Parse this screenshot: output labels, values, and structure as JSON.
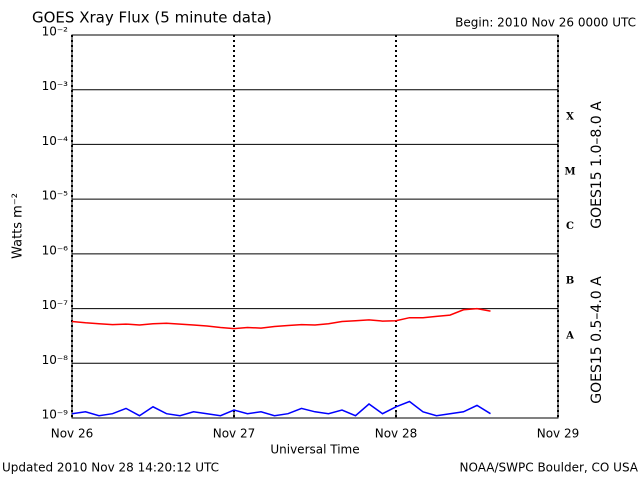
{
  "chart_data": {
    "type": "line",
    "title": "GOES Xray Flux (5 minute data)",
    "subtitle": "Begin:  2010 Nov 26 0000 UTC",
    "x_label": "Universal Time",
    "y_label": "Watts m⁻²",
    "footer_left": "Updated 2010 Nov 28 14:20:12 UTC",
    "footer_right": "NOAA/SWPC Boulder, CO USA",
    "log_scale": true,
    "grid": true,
    "xlim": [
      0,
      3
    ],
    "xticks": [
      {
        "value": 0,
        "label": "Nov 26"
      },
      {
        "value": 1,
        "label": "Nov 27"
      },
      {
        "value": 2,
        "label": "Nov 28"
      },
      {
        "value": 3,
        "label": "Nov 29"
      }
    ],
    "ylim": [
      1e-09,
      0.01
    ],
    "yticks": [
      {
        "value": 1e-09,
        "label": "10⁻⁹"
      },
      {
        "value": 1e-08,
        "label": "10⁻⁸"
      },
      {
        "value": 1e-07,
        "label": "10⁻⁷"
      },
      {
        "value": 1e-06,
        "label": "10⁻⁶"
      },
      {
        "value": 1e-05,
        "label": "10⁻⁵"
      },
      {
        "value": 0.0001,
        "label": "10⁻⁴"
      },
      {
        "value": 0.001,
        "label": "10⁻³"
      },
      {
        "value": 0.01,
        "label": "10⁻²"
      }
    ],
    "flare_classes": [
      {
        "value": 0.0001,
        "label": "X"
      },
      {
        "value": 1e-05,
        "label": "M"
      },
      {
        "value": 1e-06,
        "label": "C"
      },
      {
        "value": 1e-07,
        "label": "B"
      },
      {
        "value": 1e-08,
        "label": "A"
      }
    ],
    "x": [
      0,
      0.0833,
      0.1667,
      0.25,
      0.3333,
      0.4167,
      0.5,
      0.5833,
      0.6667,
      0.75,
      0.8333,
      0.9167,
      1,
      1.0833,
      1.1667,
      1.25,
      1.3333,
      1.4167,
      1.5,
      1.5833,
      1.6667,
      1.75,
      1.8333,
      1.9167,
      2,
      2.0833,
      2.1667,
      2.25,
      2.3333,
      2.4167,
      2.5,
      2.5833
    ],
    "series": [
      {
        "name": "GOES15 1.0–8.0 A",
        "color": "#ff0000",
        "values": [
          5.8e-08,
          5.5e-08,
          5.3e-08,
          5.1e-08,
          5.2e-08,
          5e-08,
          5.3e-08,
          5.4e-08,
          5.2e-08,
          5e-08,
          4.8e-08,
          4.5e-08,
          4.3e-08,
          4.5e-08,
          4.4e-08,
          4.7e-08,
          4.9e-08,
          5.1e-08,
          5e-08,
          5.3e-08,
          5.8e-08,
          6e-08,
          6.2e-08,
          5.9e-08,
          6e-08,
          6.8e-08,
          6.8e-08,
          7.2e-08,
          7.6e-08,
          9.5e-08,
          1e-07,
          9e-08
        ]
      },
      {
        "name": "GOES15 0.5–4.0 A",
        "color": "#0000ff",
        "values": [
          1.2e-09,
          1.3e-09,
          1.1e-09,
          1.2e-09,
          1.5e-09,
          1.1e-09,
          1.6e-09,
          1.2e-09,
          1.1e-09,
          1.3e-09,
          1.2e-09,
          1.1e-09,
          1.4e-09,
          1.2e-09,
          1.3e-09,
          1.1e-09,
          1.2e-09,
          1.5e-09,
          1.3e-09,
          1.2e-09,
          1.4e-09,
          1.1e-09,
          1.8e-09,
          1.2e-09,
          1.6e-09,
          2e-09,
          1.3e-09,
          1.1e-09,
          1.2e-09,
          1.3e-09,
          1.7e-09,
          1.2e-09
        ]
      }
    ]
  }
}
